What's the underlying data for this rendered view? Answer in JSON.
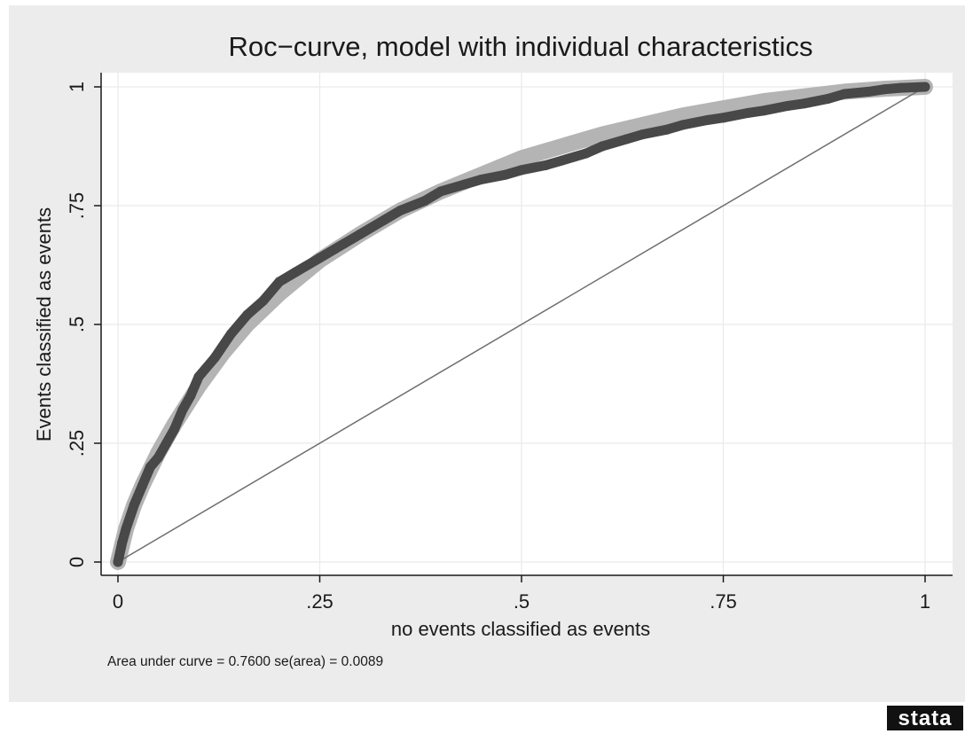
{
  "chart_data": {
    "type": "line",
    "title": "Roc−curve, model with individual characteristics",
    "xlabel": "no events classified as events",
    "ylabel": "Events classified as events",
    "xlim": [
      0,
      1
    ],
    "ylim": [
      0,
      1
    ],
    "xticks": [
      "0",
      ".25",
      ".5",
      ".75",
      "1"
    ],
    "yticks": [
      "0",
      ".25",
      ".5",
      ".75",
      "1"
    ],
    "xtick_values": [
      0,
      0.25,
      0.5,
      0.75,
      1
    ],
    "ytick_values": [
      0,
      0.25,
      0.5,
      0.75,
      1
    ],
    "grid": true,
    "note": "Area under curve = 0.7600  se(area) = 0.0089",
    "series": [
      {
        "role": "empirical-roc",
        "color": "#484848",
        "x": [
          0,
          0.005,
          0.01,
          0.02,
          0.03,
          0.04,
          0.05,
          0.06,
          0.07,
          0.08,
          0.09,
          0.1,
          0.12,
          0.14,
          0.16,
          0.18,
          0.2,
          0.22,
          0.25,
          0.28,
          0.3,
          0.33,
          0.35,
          0.38,
          0.4,
          0.43,
          0.45,
          0.48,
          0.5,
          0.53,
          0.55,
          0.58,
          0.6,
          0.63,
          0.65,
          0.68,
          0.7,
          0.73,
          0.75,
          0.78,
          0.8,
          0.83,
          0.85,
          0.88,
          0.9,
          0.93,
          0.95,
          0.97,
          1.0
        ],
        "y": [
          0,
          0.04,
          0.07,
          0.12,
          0.16,
          0.2,
          0.22,
          0.25,
          0.28,
          0.32,
          0.35,
          0.39,
          0.43,
          0.48,
          0.52,
          0.55,
          0.59,
          0.61,
          0.64,
          0.67,
          0.69,
          0.72,
          0.74,
          0.76,
          0.78,
          0.795,
          0.805,
          0.815,
          0.825,
          0.835,
          0.845,
          0.86,
          0.875,
          0.89,
          0.9,
          0.91,
          0.92,
          0.93,
          0.935,
          0.945,
          0.95,
          0.96,
          0.965,
          0.975,
          0.985,
          0.99,
          0.995,
          0.998,
          1.0
        ]
      },
      {
        "role": "fitted-roc",
        "color": "#b4b4b4",
        "x": [
          0,
          0.01,
          0.02,
          0.03,
          0.05,
          0.07,
          0.1,
          0.13,
          0.16,
          0.2,
          0.25,
          0.3,
          0.35,
          0.4,
          0.45,
          0.5,
          0.55,
          0.6,
          0.65,
          0.7,
          0.75,
          0.8,
          0.85,
          0.9,
          0.95,
          1.0
        ],
        "y": [
          0,
          0.07,
          0.12,
          0.16,
          0.23,
          0.29,
          0.37,
          0.44,
          0.5,
          0.565,
          0.635,
          0.69,
          0.74,
          0.78,
          0.815,
          0.85,
          0.875,
          0.9,
          0.92,
          0.94,
          0.955,
          0.97,
          0.98,
          0.99,
          0.996,
          1.0
        ]
      },
      {
        "role": "reference-line",
        "color": "#6e6e6e",
        "x": [
          0,
          1
        ],
        "y": [
          0,
          1
        ]
      }
    ]
  },
  "branding": {
    "logo_text": "stata"
  }
}
